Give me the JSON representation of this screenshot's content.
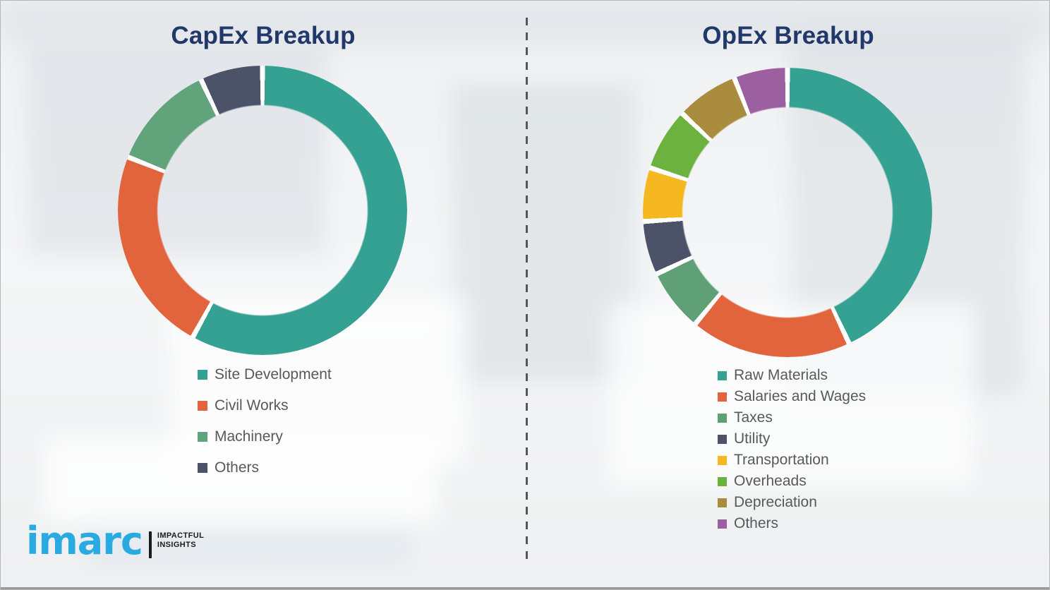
{
  "chart_data": [
    {
      "type": "pie",
      "variant": "donut",
      "title": "CapEx Breakup",
      "labels": [
        "Site Development",
        "Civil Works",
        "Machinery",
        "Others"
      ],
      "values": [
        58,
        23,
        12,
        7
      ],
      "colors": [
        "#35A192",
        "#E2643C",
        "#61A37B",
        "#4C5268"
      ],
      "start_angle_deg": 0,
      "direction": "clockwise",
      "legend_position": "below-left"
    },
    {
      "type": "pie",
      "variant": "donut",
      "title": "OpEx Breakup",
      "labels": [
        "Raw Materials",
        "Salaries and Wages",
        "Taxes",
        "Utility",
        "Transportation",
        "Overheads",
        "Depreciation",
        "Others"
      ],
      "values": [
        43,
        18,
        7,
        6,
        6,
        7,
        7,
        6
      ],
      "colors": [
        "#35A192",
        "#E2643C",
        "#5FA077",
        "#4C5268",
        "#F6B820",
        "#6BB23E",
        "#A98C3D",
        "#9C5F9F"
      ],
      "start_angle_deg": 0,
      "direction": "clockwise",
      "legend_position": "below-left"
    }
  ],
  "branding": {
    "logo_text": "imarc",
    "tagline": [
      "IMPACTFUL",
      "INSIGHTS"
    ],
    "logo_color": "#29ABE2"
  },
  "theme": {
    "title_color": "#22386B",
    "legend_text_color": "#595959",
    "divider_color": "#54565A",
    "segment_gap_color": "#FFFFFF"
  }
}
